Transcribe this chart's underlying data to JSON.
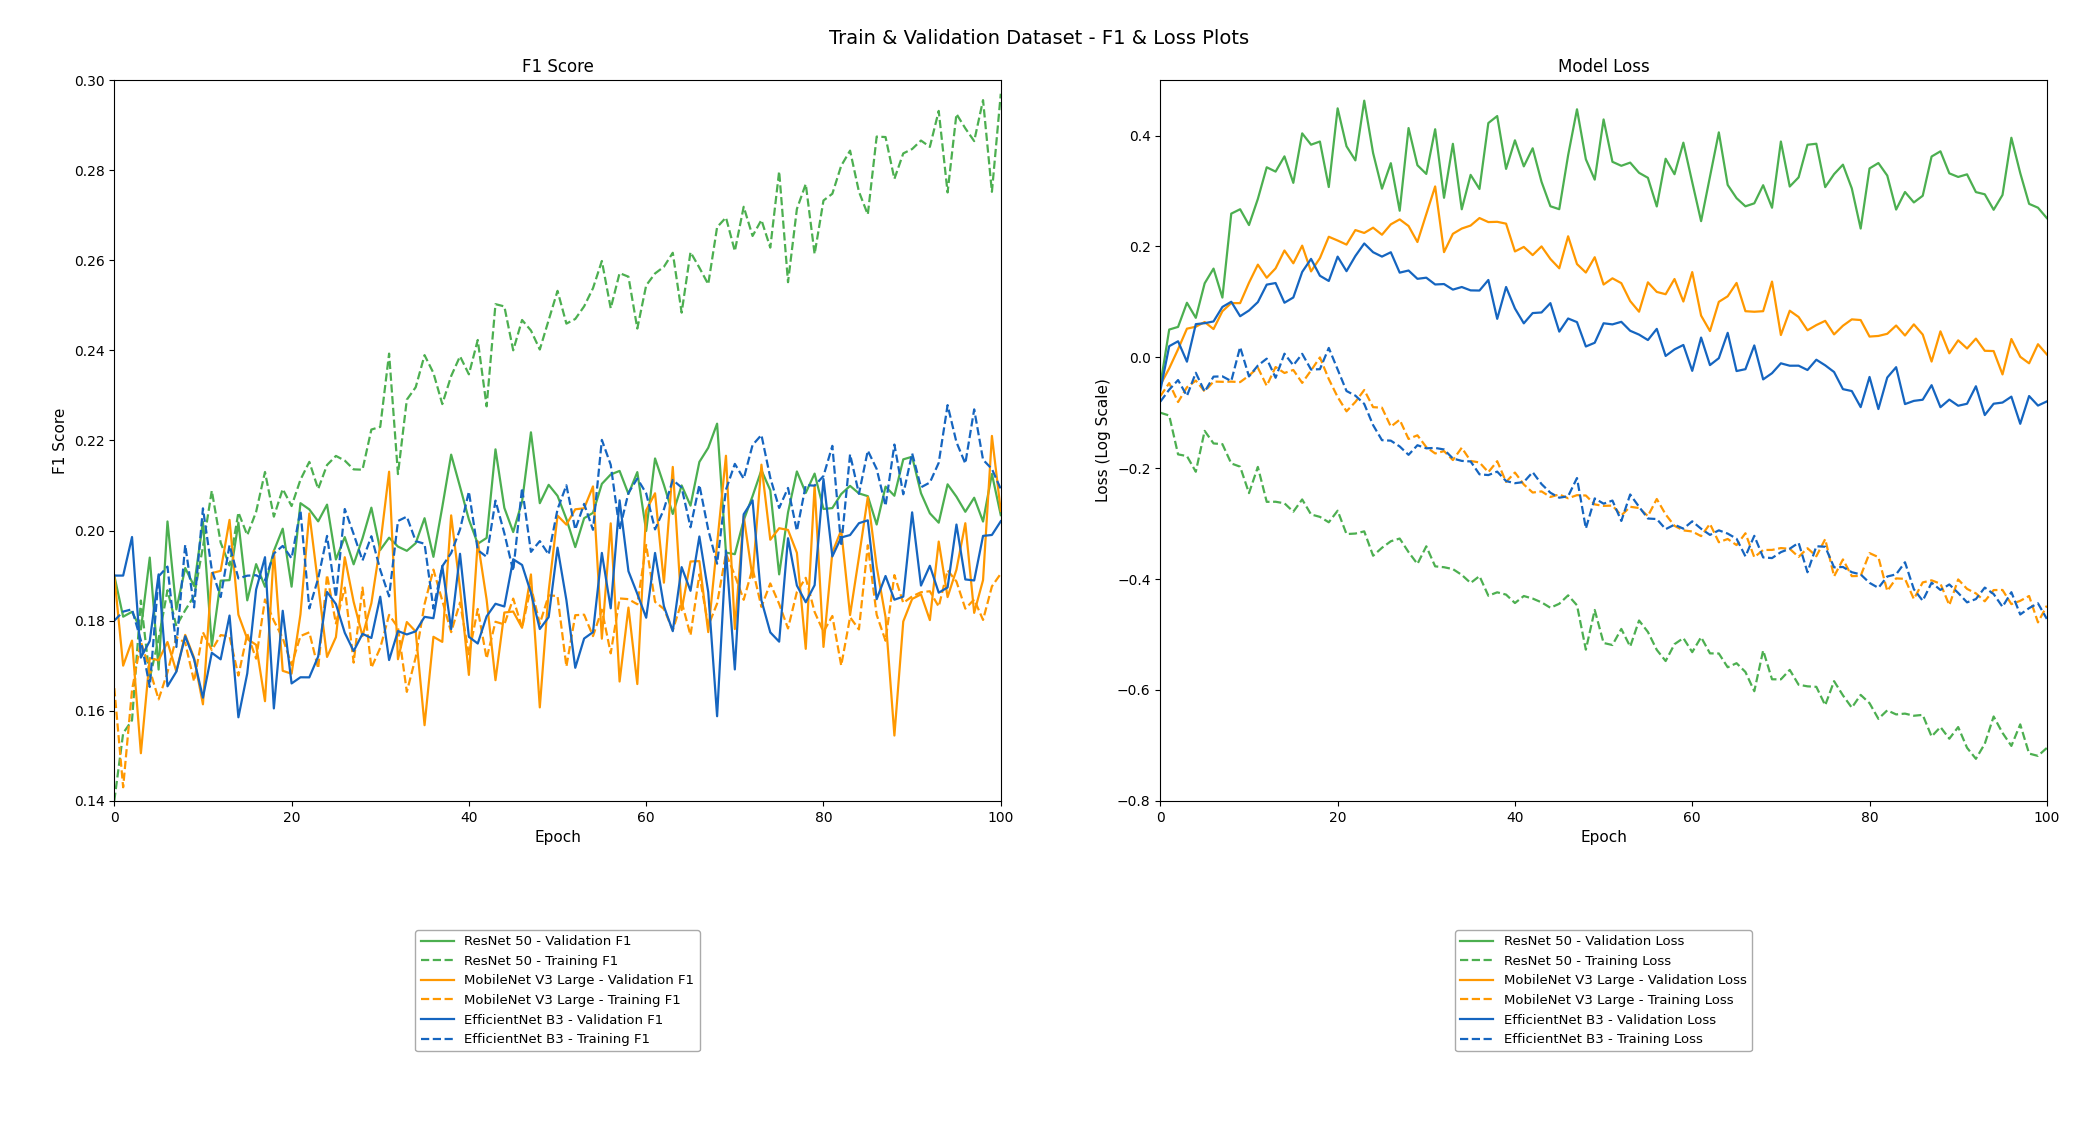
{
  "title": "Train & Validation Dataset - F1 & Loss Plots",
  "subplot1_title": "F1 Score",
  "subplot2_title": "Model Loss",
  "xlabel": "Epoch",
  "ylabel_f1": "F1 Score",
  "ylabel_loss": "Loss (Log Scale)",
  "epochs": 101,
  "f1_ylim": [
    0.14,
    0.3
  ],
  "loss_ylim": [
    -0.8,
    0.5
  ],
  "colors": {
    "resnet": "#4caf50",
    "mobilenet": "#ff9800",
    "efficientnet": "#1565c0"
  },
  "legend_f1": [
    {
      "label": "ResNet 50 - Validation F1",
      "color": "#4caf50",
      "ls": "-"
    },
    {
      "label": "ResNet 50 - Training F1",
      "color": "#4caf50",
      "ls": "--"
    },
    {
      "label": "MobileNet V3 Large - Validation F1",
      "color": "#ff9800",
      "ls": "-"
    },
    {
      "label": "MobileNet V3 Large - Training F1",
      "color": "#ff9800",
      "ls": "--"
    },
    {
      "label": "EfficientNet B3 - Validation F1",
      "color": "#1565c0",
      "ls": "-"
    },
    {
      "label": "EfficientNet B3 - Training F1",
      "color": "#1565c0",
      "ls": "--"
    }
  ],
  "legend_loss": [
    {
      "label": "ResNet 50 - Validation Loss",
      "color": "#4caf50",
      "ls": "-"
    },
    {
      "label": "ResNet 50 - Training Loss",
      "color": "#4caf50",
      "ls": "--"
    },
    {
      "label": "MobileNet V3 Large - Validation Loss",
      "color": "#ff9800",
      "ls": "-"
    },
    {
      "label": "MobileNet V3 Large - Training Loss",
      "color": "#ff9800",
      "ls": "--"
    },
    {
      "label": "EfficientNet B3 - Validation Loss",
      "color": "#1565c0",
      "ls": "-"
    },
    {
      "label": "EfficientNet B3 - Training Loss",
      "color": "#1565c0",
      "ls": "--"
    }
  ]
}
